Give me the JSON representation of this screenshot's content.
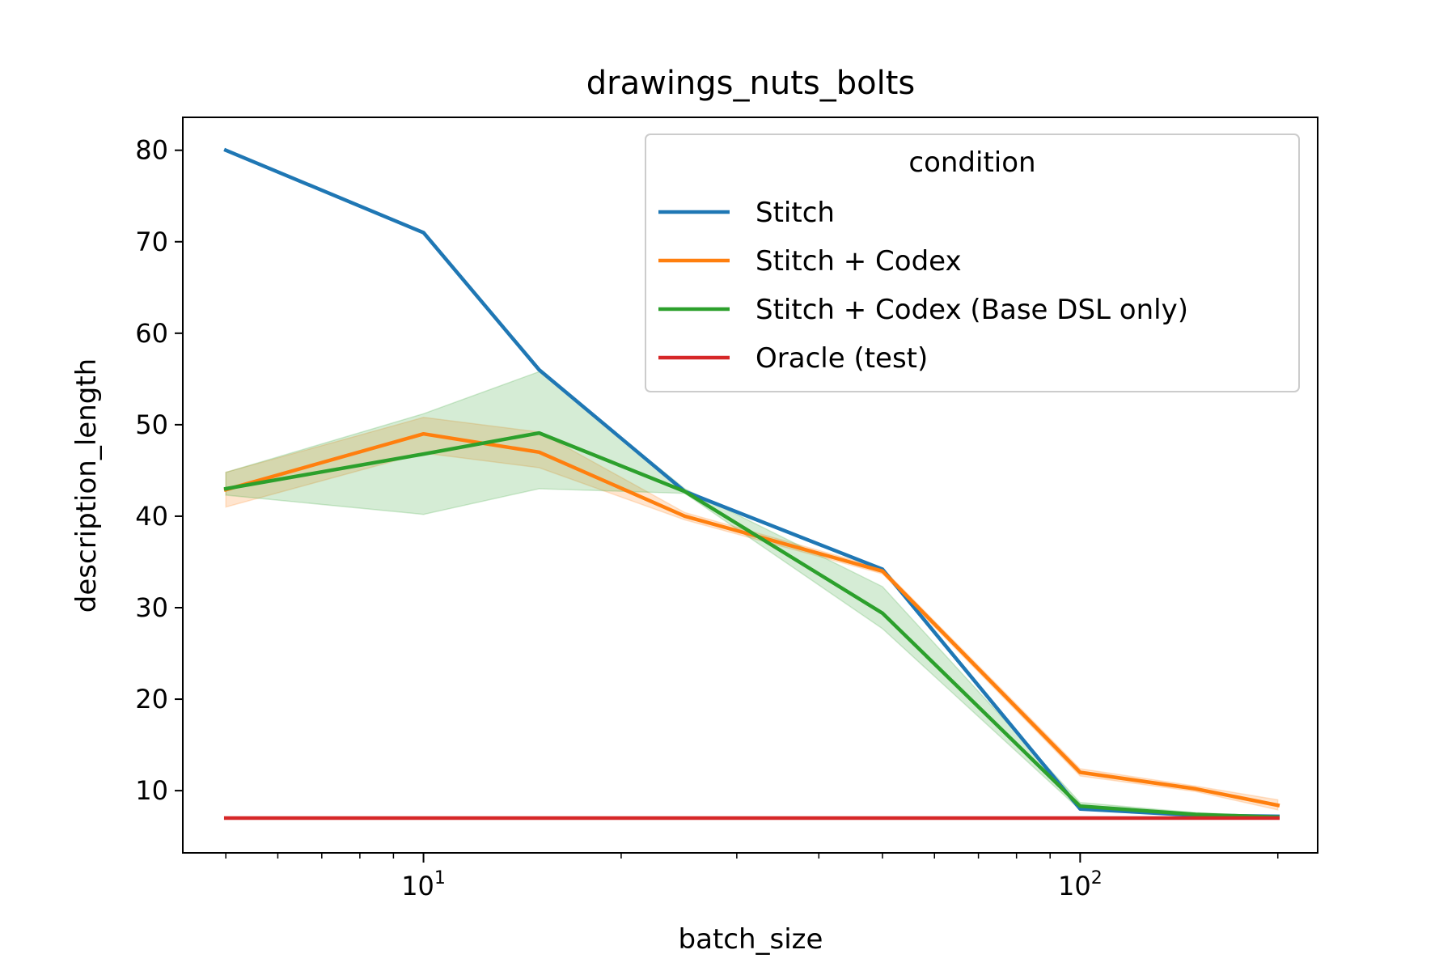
{
  "chart_data": {
    "type": "line",
    "title": "drawings_nuts_bolts",
    "xlabel": "batch_size",
    "ylabel": "description_length",
    "xscale": "log",
    "xlim": [
      4.3,
      230
    ],
    "ylim": [
      3.2,
      83.6
    ],
    "x_ticks": [
      10,
      100
    ],
    "x_tick_labels": [
      {
        "base": "10",
        "exp": "1"
      },
      {
        "base": "10",
        "exp": "2"
      }
    ],
    "y_ticks": [
      10,
      20,
      30,
      40,
      50,
      60,
      70,
      80
    ],
    "y_tick_labels": [
      "10",
      "20",
      "30",
      "40",
      "50",
      "60",
      "70",
      "80"
    ],
    "grid": false,
    "legend": {
      "title": "condition",
      "position": "top-right"
    },
    "x": [
      5,
      10,
      15,
      25,
      50,
      100,
      150,
      200
    ],
    "series": [
      {
        "name": "Stitch",
        "color": "#1f77b4",
        "values": [
          80,
          71,
          56,
          42.7,
          34.2,
          8,
          7.3,
          7.2
        ]
      },
      {
        "name": "Stitch + Codex",
        "color": "#ff7f0e",
        "values": [
          42.9,
          49,
          47,
          40,
          34,
          12,
          10.2,
          8.4
        ],
        "ci_lower": [
          41,
          46.9,
          45.3,
          39.6,
          33.7,
          11.6,
          9.9,
          7.9
        ],
        "ci_upper": [
          44.8,
          50.8,
          49.2,
          40.4,
          34.3,
          12.4,
          10.5,
          9
        ]
      },
      {
        "name": "Stitch + Codex (Base DSL only)",
        "color": "#2ca02c",
        "values": [
          43,
          46.8,
          49.1,
          42.7,
          29.4,
          8.3,
          7.4,
          7.1
        ],
        "ci_lower": [
          42.3,
          40.2,
          43,
          42.5,
          27.7,
          7.9,
          7.2,
          7
        ],
        "ci_upper": [
          44.8,
          51.2,
          55.8,
          43,
          32.3,
          8.7,
          7.6,
          7.2
        ]
      },
      {
        "name": "Oracle (test)",
        "color": "#d62728",
        "values": [
          7,
          7,
          7,
          7,
          7,
          7,
          7,
          7
        ]
      }
    ]
  }
}
